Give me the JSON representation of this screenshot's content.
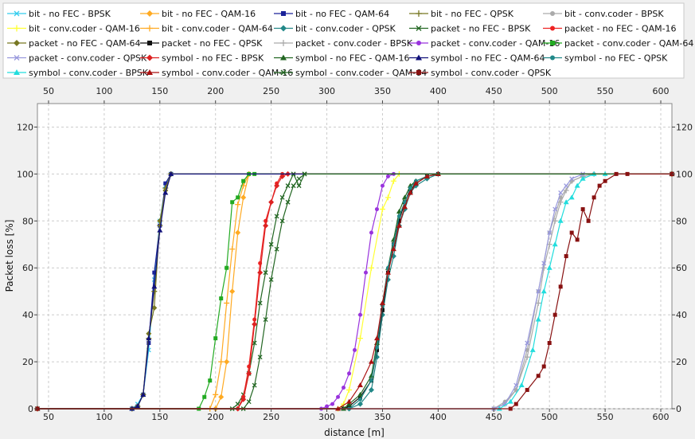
{
  "chart_data": {
    "type": "line",
    "xlabel": "distance [m]",
    "ylabel": "Packet loss [%]",
    "xlim": [
      40,
      610
    ],
    "ylim": [
      0,
      130
    ],
    "x_ticks": [
      50,
      100,
      150,
      200,
      250,
      300,
      350,
      400,
      450,
      500,
      550,
      600
    ],
    "y_ticks": [
      0,
      20,
      40,
      60,
      80,
      100,
      120
    ],
    "grid": true,
    "legend_position": "top",
    "series": [
      {
        "name": "bit - no FEC - BPSK",
        "color": "#33ccee",
        "marker": "x",
        "x": [
          40,
          125,
          130,
          135,
          140,
          145,
          150,
          155,
          160,
          610
        ],
        "y": [
          0,
          0,
          2,
          6,
          25,
          55,
          80,
          95,
          100,
          100
        ]
      },
      {
        "name": "bit - no FEC - QAM-16",
        "color": "#ffaa22",
        "marker": "diamond",
        "x": [
          40,
          200,
          205,
          210,
          215,
          220,
          225,
          230,
          610
        ],
        "y": [
          0,
          0,
          5,
          20,
          50,
          75,
          90,
          100,
          100
        ]
      },
      {
        "name": "bit - no FEC - QAM-64",
        "color": "#1a2299",
        "marker": "square",
        "x": [
          40,
          125,
          130,
          135,
          140,
          145,
          150,
          155,
          160,
          610
        ],
        "y": [
          0,
          0,
          1,
          6,
          28,
          58,
          78,
          96,
          100,
          100
        ]
      },
      {
        "name": "bit - no FEC - QPSK",
        "color": "#777722",
        "marker": "plus",
        "x": [
          40,
          125,
          130,
          135,
          140,
          145,
          150,
          155,
          160,
          610
        ],
        "y": [
          0,
          0,
          1,
          6,
          30,
          50,
          78,
          94,
          100,
          100
        ]
      },
      {
        "name": "bit - conv.coder - BPSK",
        "color": "#aaaaaa",
        "marker": "circle",
        "x": [
          40,
          450,
          460,
          470,
          480,
          490,
          500,
          510,
          520,
          530,
          540,
          610
        ],
        "y": [
          0,
          0,
          3,
          8,
          25,
          50,
          75,
          90,
          97,
          99,
          100,
          100
        ]
      },
      {
        "name": "bit - conv.coder - QAM-16",
        "color": "#ffff33",
        "marker": "plus",
        "x": [
          40,
          310,
          315,
          320,
          330,
          340,
          350,
          355,
          360,
          365,
          610
        ],
        "y": [
          0,
          0,
          2,
          8,
          30,
          60,
          85,
          90,
          97,
          100,
          100
        ]
      },
      {
        "name": "bit - conv.coder - QAM-64",
        "color": "#ffaa22",
        "marker": "plus",
        "x": [
          40,
          195,
          200,
          205,
          210,
          215,
          220,
          225,
          230,
          610
        ],
        "y": [
          0,
          0,
          6,
          20,
          45,
          68,
          87,
          95,
          100,
          100
        ]
      },
      {
        "name": "bit - conv.coder - QPSK",
        "color": "#228888",
        "marker": "diamond",
        "x": [
          40,
          320,
          330,
          340,
          345,
          350,
          355,
          360,
          365,
          370,
          375,
          380,
          390,
          400,
          610
        ],
        "y": [
          0,
          0,
          2,
          8,
          22,
          40,
          55,
          65,
          78,
          85,
          92,
          95,
          98,
          100,
          100
        ]
      },
      {
        "name": "packet - no FEC - BPSK",
        "color": "#226622",
        "marker": "x",
        "x": [
          40,
          215,
          220,
          225,
          230,
          235,
          240,
          245,
          250,
          255,
          260,
          265,
          270,
          275,
          280,
          610
        ],
        "y": [
          0,
          0,
          2,
          6,
          15,
          28,
          45,
          58,
          70,
          82,
          90,
          95,
          100,
          95,
          100,
          100
        ]
      },
      {
        "name": "packet - no FEC - QAM-16",
        "color": "#ee2222",
        "marker": "circle",
        "x": [
          40,
          220,
          225,
          230,
          235,
          240,
          245,
          250,
          255,
          260,
          610
        ],
        "y": [
          0,
          0,
          5,
          18,
          38,
          62,
          80,
          88,
          96,
          100,
          100
        ]
      },
      {
        "name": "packet - no FEC - QAM-64",
        "color": "#777722",
        "marker": "diamond",
        "x": [
          40,
          125,
          130,
          135,
          140,
          145,
          150,
          155,
          160,
          610
        ],
        "y": [
          0,
          0,
          1,
          6,
          32,
          43,
          80,
          93,
          100,
          100
        ]
      },
      {
        "name": "packet - no FEC - QPSK",
        "color": "#111111",
        "marker": "square",
        "x": [
          40,
          315,
          320,
          330,
          340,
          345,
          350,
          355,
          360,
          365,
          370,
          375,
          380,
          390,
          400,
          610
        ],
        "y": [
          0,
          0,
          1,
          5,
          12,
          25,
          42,
          58,
          70,
          80,
          88,
          93,
          96,
          99,
          100,
          100
        ]
      },
      {
        "name": "packet - conv.coder - BPSK",
        "color": "#aaaaaa",
        "marker": "plus",
        "x": [
          40,
          450,
          460,
          470,
          480,
          490,
          495,
          500,
          505,
          510,
          515,
          520,
          530,
          540,
          610
        ],
        "y": [
          0,
          0,
          2,
          8,
          22,
          45,
          60,
          70,
          80,
          88,
          93,
          97,
          99,
          100,
          100
        ]
      },
      {
        "name": "packet - conv.coder - QAM-16",
        "color": "#9933dd",
        "marker": "circle",
        "x": [
          40,
          295,
          300,
          305,
          310,
          315,
          320,
          325,
          330,
          335,
          340,
          345,
          350,
          355,
          360,
          610
        ],
        "y": [
          0,
          0,
          1,
          2,
          5,
          9,
          15,
          25,
          40,
          58,
          75,
          85,
          95,
          99,
          100,
          100
        ]
      },
      {
        "name": "packet - conv.coder - QAM-64",
        "color": "#22aa22",
        "marker": "square",
        "x": [
          40,
          185,
          190,
          195,
          200,
          205,
          210,
          215,
          220,
          225,
          230,
          235,
          610
        ],
        "y": [
          0,
          0,
          5,
          12,
          30,
          47,
          60,
          88,
          90,
          97,
          100,
          100,
          100
        ]
      },
      {
        "name": "packet - conv.coder - QPSK",
        "color": "#9999dd",
        "marker": "x",
        "x": [
          40,
          450,
          460,
          470,
          480,
          490,
          495,
          500,
          505,
          510,
          515,
          520,
          530,
          610
        ],
        "y": [
          0,
          0,
          2,
          10,
          28,
          50,
          62,
          75,
          85,
          92,
          95,
          98,
          100,
          100
        ]
      },
      {
        "name": "symbol - no FEC - BPSK",
        "color": "#dd2222",
        "marker": "diamond",
        "x": [
          40,
          220,
          225,
          230,
          235,
          240,
          245,
          250,
          255,
          260,
          265,
          610
        ],
        "y": [
          0,
          0,
          4,
          15,
          36,
          58,
          78,
          88,
          95,
          99,
          100,
          100
        ]
      },
      {
        "name": "symbol - no FEC - QAM-16",
        "color": "#226622",
        "marker": "triangle",
        "x": [
          40,
          315,
          320,
          330,
          340,
          345,
          350,
          355,
          360,
          365,
          370,
          375,
          380,
          390,
          400,
          610
        ],
        "y": [
          0,
          0,
          2,
          6,
          14,
          28,
          45,
          60,
          72,
          84,
          90,
          95,
          97,
          99,
          100,
          100
        ]
      },
      {
        "name": "symbol - no FEC - QAM-64",
        "color": "#11117a",
        "marker": "triangle",
        "x": [
          40,
          125,
          130,
          135,
          140,
          145,
          150,
          155,
          160,
          610
        ],
        "y": [
          0,
          0,
          1,
          6,
          30,
          52,
          76,
          92,
          100,
          100
        ]
      },
      {
        "name": "symbol - no FEC - QPSK",
        "color": "#228888",
        "marker": "circle",
        "x": [
          40,
          320,
          330,
          340,
          345,
          350,
          355,
          360,
          365,
          370,
          375,
          380,
          390,
          400,
          610
        ],
        "y": [
          0,
          0,
          4,
          12,
          26,
          44,
          60,
          70,
          82,
          88,
          94,
          97,
          99,
          100,
          100
        ]
      },
      {
        "name": "symbol - conv.coder - BPSK",
        "color": "#22dddd",
        "marker": "triangle",
        "x": [
          40,
          455,
          465,
          475,
          485,
          490,
          495,
          500,
          505,
          510,
          515,
          520,
          525,
          530,
          540,
          550,
          610
        ],
        "y": [
          0,
          0,
          3,
          10,
          25,
          38,
          50,
          60,
          70,
          80,
          88,
          90,
          95,
          98,
          100,
          100,
          100
        ]
      },
      {
        "name": "symbol - conv.coder - QAM-16",
        "color": "#aa1111",
        "marker": "triangle",
        "x": [
          40,
          310,
          320,
          330,
          340,
          345,
          350,
          355,
          360,
          365,
          370,
          375,
          380,
          390,
          400,
          610
        ],
        "y": [
          0,
          0,
          3,
          10,
          20,
          30,
          45,
          58,
          68,
          78,
          86,
          92,
          96,
          99,
          100,
          100
        ]
      },
      {
        "name": "symbol - conv.coder - QAM-64",
        "color": "#226622",
        "marker": "x",
        "x": [
          40,
          225,
          230,
          235,
          240,
          245,
          250,
          255,
          260,
          265,
          270,
          275,
          280,
          610
        ],
        "y": [
          0,
          0,
          3,
          10,
          22,
          38,
          55,
          68,
          80,
          88,
          95,
          98,
          100,
          100
        ]
      },
      {
        "name": "symbol - conv.coder - QPSK",
        "color": "#881111",
        "marker": "square",
        "x": [
          40,
          465,
          470,
          480,
          490,
          495,
          500,
          505,
          510,
          515,
          520,
          525,
          530,
          535,
          540,
          545,
          550,
          560,
          570,
          610
        ],
        "y": [
          0,
          0,
          2,
          8,
          14,
          18,
          28,
          40,
          52,
          65,
          75,
          72,
          85,
          80,
          90,
          95,
          97,
          100,
          100,
          100
        ]
      }
    ]
  }
}
